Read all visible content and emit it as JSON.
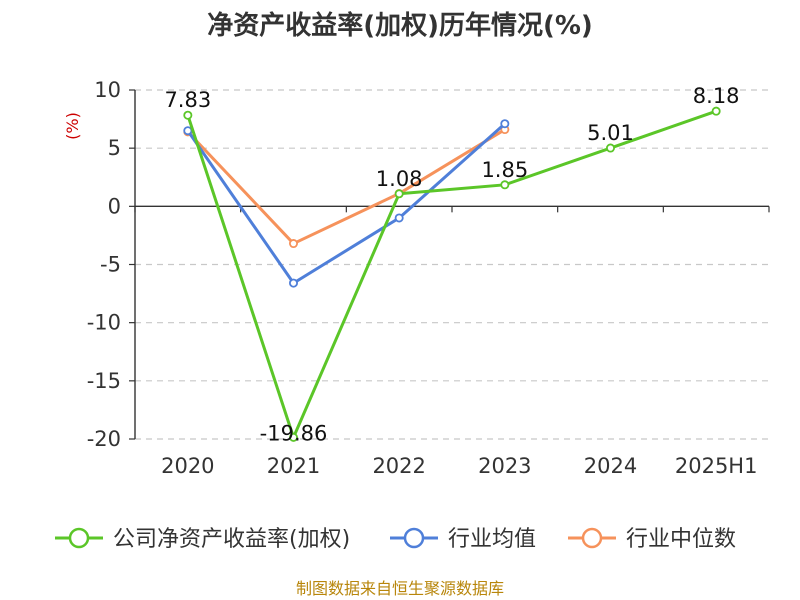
{
  "chart_data": {
    "type": "line",
    "title": "净资产收益率(加权)历年情况(%)",
    "ylabel": "(%)",
    "categories": [
      "2020",
      "2021",
      "2022",
      "2023",
      "2024",
      "2025H1"
    ],
    "ylim": [
      -20,
      10
    ],
    "yticks": [
      10,
      5,
      0,
      -5,
      -10,
      -15,
      -20
    ],
    "grid": true,
    "legend_position": "bottom",
    "series": [
      {
        "name": "公司净资产收益率(加权)",
        "color": "#5bc628",
        "values": [
          7.83,
          -19.86,
          1.08,
          1.85,
          5.01,
          8.18
        ],
        "labels": [
          "7.83",
          "-19.86",
          "1.08",
          "1.85",
          "5.01",
          "8.18"
        ]
      },
      {
        "name": "行业均值",
        "color": "#4f7fd9",
        "values": [
          6.5,
          -6.6,
          -1.0,
          7.1,
          null,
          null
        ]
      },
      {
        "name": "行业中位数",
        "color": "#f6925b",
        "values": [
          6.4,
          -3.2,
          1.1,
          6.6,
          null,
          null
        ]
      }
    ]
  },
  "source": "制图数据来自恒生聚源数据库"
}
